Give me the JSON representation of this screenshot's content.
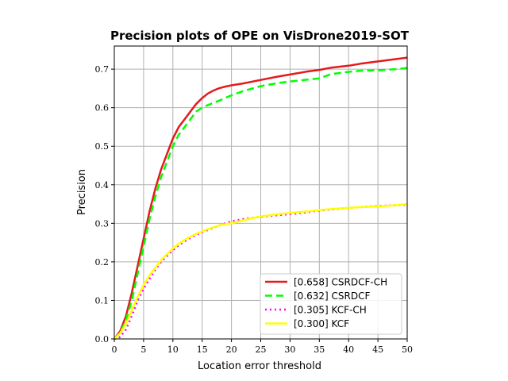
{
  "chart_data": {
    "type": "line",
    "title": "Precision plots of OPE on VisDrone2019-SOT",
    "xlabel": "Location error threshold",
    "ylabel": "Precision",
    "xlim": [
      0,
      50
    ],
    "ylim": [
      0,
      0.76
    ],
    "xticks": [
      0,
      5,
      10,
      15,
      20,
      25,
      30,
      35,
      40,
      45,
      50
    ],
    "yticks": [
      0,
      0.1,
      0.2,
      0.3,
      0.4,
      0.5,
      0.6,
      0.7
    ],
    "xtick_labels": [
      "0",
      "5",
      "10",
      "15",
      "20",
      "25",
      "30",
      "35",
      "40",
      "45",
      "50"
    ],
    "ytick_labels": [
      "0.0",
      "0.1",
      "0.2",
      "0.3",
      "0.4",
      "0.5",
      "0.6",
      "0.7"
    ],
    "grid": true,
    "legend_position": "lower-right",
    "series": [
      {
        "name": "[0.658] CSRDCF-CH",
        "color": "#e41a1c",
        "style": "solid",
        "x": [
          0,
          1,
          2,
          3,
          4,
          5,
          6,
          7,
          8,
          9,
          10,
          11,
          12,
          13,
          14,
          15,
          16,
          17,
          18,
          19,
          20,
          22,
          25,
          28,
          30,
          33,
          35,
          37,
          40,
          42,
          45,
          48,
          50
        ],
        "y": [
          0,
          0.02,
          0.06,
          0.12,
          0.19,
          0.26,
          0.33,
          0.39,
          0.44,
          0.48,
          0.52,
          0.55,
          0.57,
          0.59,
          0.61,
          0.625,
          0.637,
          0.645,
          0.651,
          0.655,
          0.658,
          0.663,
          0.672,
          0.681,
          0.686,
          0.694,
          0.698,
          0.704,
          0.709,
          0.714,
          0.72,
          0.726,
          0.73
        ]
      },
      {
        "name": "[0.632] CSRDCF",
        "color": "#00ff00",
        "style": "dashed",
        "x": [
          0,
          1,
          2,
          3,
          4,
          5,
          6,
          7,
          8,
          9,
          10,
          11,
          12,
          13,
          14,
          15,
          16,
          17,
          18,
          19,
          20,
          22,
          25,
          28,
          30,
          33,
          35,
          37,
          40,
          42,
          45,
          48,
          50
        ],
        "y": [
          0,
          0.015,
          0.05,
          0.1,
          0.17,
          0.24,
          0.31,
          0.37,
          0.42,
          0.46,
          0.5,
          0.53,
          0.55,
          0.57,
          0.59,
          0.6,
          0.607,
          0.613,
          0.619,
          0.626,
          0.632,
          0.643,
          0.656,
          0.664,
          0.668,
          0.673,
          0.676,
          0.687,
          0.693,
          0.696,
          0.697,
          0.7,
          0.703
        ]
      },
      {
        "name": "[0.305] KCF-CH",
        "color": "#ff00ff",
        "style": "dotted",
        "x": [
          0,
          1,
          2,
          3,
          4,
          5,
          6,
          7,
          8,
          9,
          10,
          11,
          12,
          13,
          14,
          15,
          16,
          17,
          18,
          19,
          20,
          22,
          25,
          28,
          30,
          33,
          35,
          37,
          40,
          42,
          45,
          48,
          50
        ],
        "y": [
          0,
          0.005,
          0.025,
          0.06,
          0.1,
          0.13,
          0.155,
          0.18,
          0.2,
          0.215,
          0.23,
          0.243,
          0.253,
          0.262,
          0.27,
          0.277,
          0.283,
          0.289,
          0.295,
          0.3,
          0.305,
          0.311,
          0.317,
          0.321,
          0.324,
          0.329,
          0.333,
          0.336,
          0.34,
          0.342,
          0.345,
          0.347,
          0.348
        ]
      },
      {
        "name": "[0.300] KCF",
        "color": "#ffff00",
        "style": "solid",
        "x": [
          0,
          1,
          2,
          3,
          4,
          5,
          6,
          7,
          8,
          9,
          10,
          11,
          12,
          13,
          14,
          15,
          16,
          17,
          18,
          19,
          20,
          22,
          25,
          28,
          30,
          33,
          35,
          37,
          40,
          42,
          45,
          48,
          50
        ],
        "y": [
          0,
          0.015,
          0.04,
          0.075,
          0.11,
          0.14,
          0.165,
          0.185,
          0.205,
          0.22,
          0.235,
          0.247,
          0.257,
          0.265,
          0.273,
          0.279,
          0.285,
          0.29,
          0.295,
          0.298,
          0.3,
          0.308,
          0.318,
          0.324,
          0.327,
          0.331,
          0.334,
          0.337,
          0.34,
          0.342,
          0.344,
          0.347,
          0.35
        ]
      }
    ]
  }
}
